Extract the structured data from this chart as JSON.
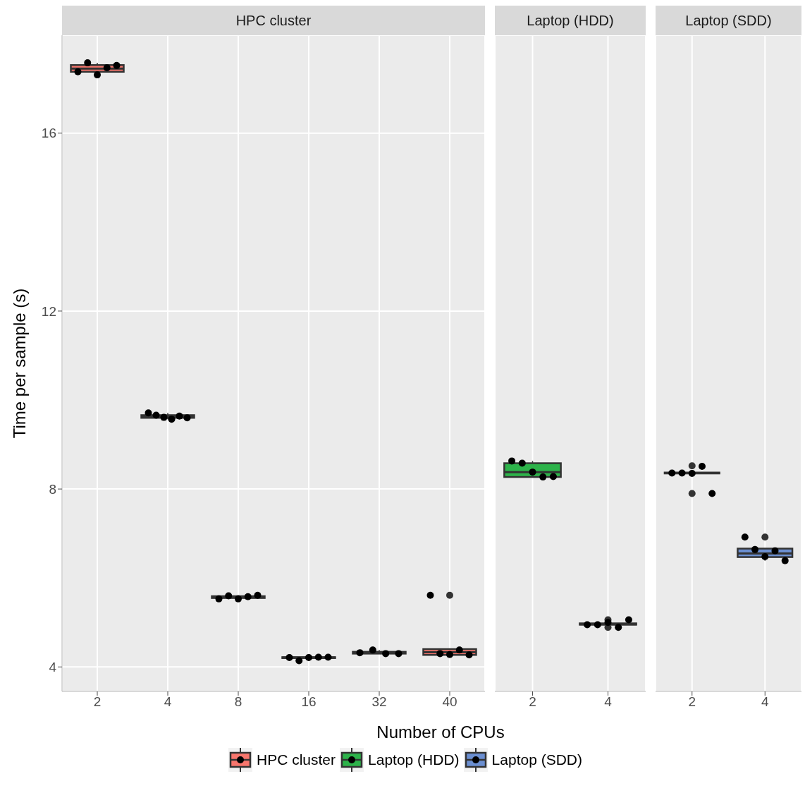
{
  "chart_data": [
    {
      "type": "box",
      "title": "HPC cluster",
      "xlabel": "Number of CPUs",
      "ylabel": "Time per sample (s)",
      "categories": [
        "2",
        "4",
        "8",
        "16",
        "32",
        "40"
      ],
      "ylim": [
        3.45,
        18.2
      ],
      "yticks": [
        4,
        8,
        12,
        16
      ],
      "grid": true,
      "legend": "bottom",
      "marker": "circle",
      "series": [
        {
          "type": "box",
          "name": "HPC cluster",
          "color": "#f8766d",
          "boxes": [
            {
              "low": 17.31,
              "q1": 17.38,
              "median": 17.45,
              "q3": 17.53,
              "high": 17.58
            },
            {
              "low": 9.57,
              "q1": 9.6,
              "median": 9.63,
              "q3": 9.66,
              "high": 9.71
            },
            {
              "low": 5.53,
              "q1": 5.55,
              "median": 5.57,
              "q3": 5.59,
              "high": 5.61
            },
            {
              "low": 4.14,
              "q1": 4.2,
              "median": 4.21,
              "q3": 4.22,
              "high": 4.22
            },
            {
              "low": 4.3,
              "q1": 4.3,
              "median": 4.32,
              "q3": 4.34,
              "high": 4.38
            },
            {
              "low": 4.27,
              "q1": 4.27,
              "median": 4.33,
              "q3": 4.4,
              "high": 4.4,
              "outliers": [
                5.61
              ]
            }
          ]
        },
        {
          "type": "scatter",
          "color": "#000000",
          "x": [
            "2",
            "2",
            "2",
            "2",
            "2",
            "4",
            "4",
            "4",
            "4",
            "4",
            "4",
            "8",
            "8",
            "8",
            "8",
            "8",
            "16",
            "16",
            "16",
            "16",
            "16",
            "32",
            "32",
            "32",
            "32",
            "40",
            "40",
            "40",
            "40",
            "40"
          ],
          "values": [
            17.38,
            17.58,
            17.31,
            17.47,
            17.52,
            9.71,
            9.66,
            9.61,
            9.57,
            9.64,
            9.6,
            5.53,
            5.6,
            5.53,
            5.58,
            5.61,
            4.21,
            4.14,
            4.21,
            4.22,
            4.22,
            4.32,
            4.38,
            4.3,
            4.3,
            5.61,
            4.3,
            4.28,
            4.38,
            4.27
          ]
        }
      ]
    },
    {
      "type": "box",
      "title": "Laptop (HDD)",
      "categories": [
        "2",
        "4"
      ],
      "ylim": [
        3.45,
        18.2
      ],
      "yticks": [
        4,
        8,
        12,
        16
      ],
      "grid": true,
      "legend": "bottom",
      "marker": "circle",
      "tick_labels": "x",
      "series": [
        {
          "type": "box",
          "name": "Laptop (HDD)",
          "color": "#2db34a",
          "boxes": [
            {
              "low": 8.27,
              "q1": 8.27,
              "median": 8.38,
              "q3": 8.58,
              "high": 8.63
            },
            {
              "low": 4.93,
              "q1": 4.95,
              "median": 4.96,
              "q3": 4.98,
              "high": 5.0,
              "outliers": [
                4.89,
                5.06
              ]
            }
          ]
        },
        {
          "type": "scatter",
          "color": "#000000",
          "x": [
            "2",
            "2",
            "2",
            "2",
            "2",
            "4",
            "4",
            "4",
            "4",
            "4"
          ],
          "values": [
            8.63,
            8.58,
            8.38,
            8.27,
            8.28,
            4.95,
            4.95,
            5.0,
            4.89,
            5.06
          ]
        }
      ]
    },
    {
      "type": "box",
      "title": "Laptop (SDD)",
      "categories": [
        "2",
        "4"
      ],
      "ylim": [
        3.45,
        18.2
      ],
      "yticks": [
        4,
        8,
        12,
        16
      ],
      "grid": true,
      "legend": "bottom",
      "marker": "circle",
      "tick_labels": "x",
      "series": [
        {
          "type": "box",
          "name": "Laptop (SDD)",
          "color": "#6b8fd1",
          "boxes": [
            {
              "low": 8.35,
              "q1": 8.35,
              "median": 8.36,
              "q3": 8.37,
              "high": 8.37,
              "outliers": [
                8.52,
                7.9
              ]
            },
            {
              "low": 6.39,
              "q1": 6.47,
              "median": 6.55,
              "q3": 6.66,
              "high": 6.66,
              "outliers": [
                6.92
              ]
            }
          ]
        },
        {
          "type": "scatter",
          "color": "#000000",
          "x": [
            "2",
            "2",
            "2",
            "2",
            "2",
            "4",
            "4",
            "4",
            "4",
            "4"
          ],
          "values": [
            8.36,
            8.36,
            8.35,
            8.51,
            7.9,
            6.92,
            6.64,
            6.48,
            6.61,
            6.39
          ]
        }
      ]
    }
  ]
}
